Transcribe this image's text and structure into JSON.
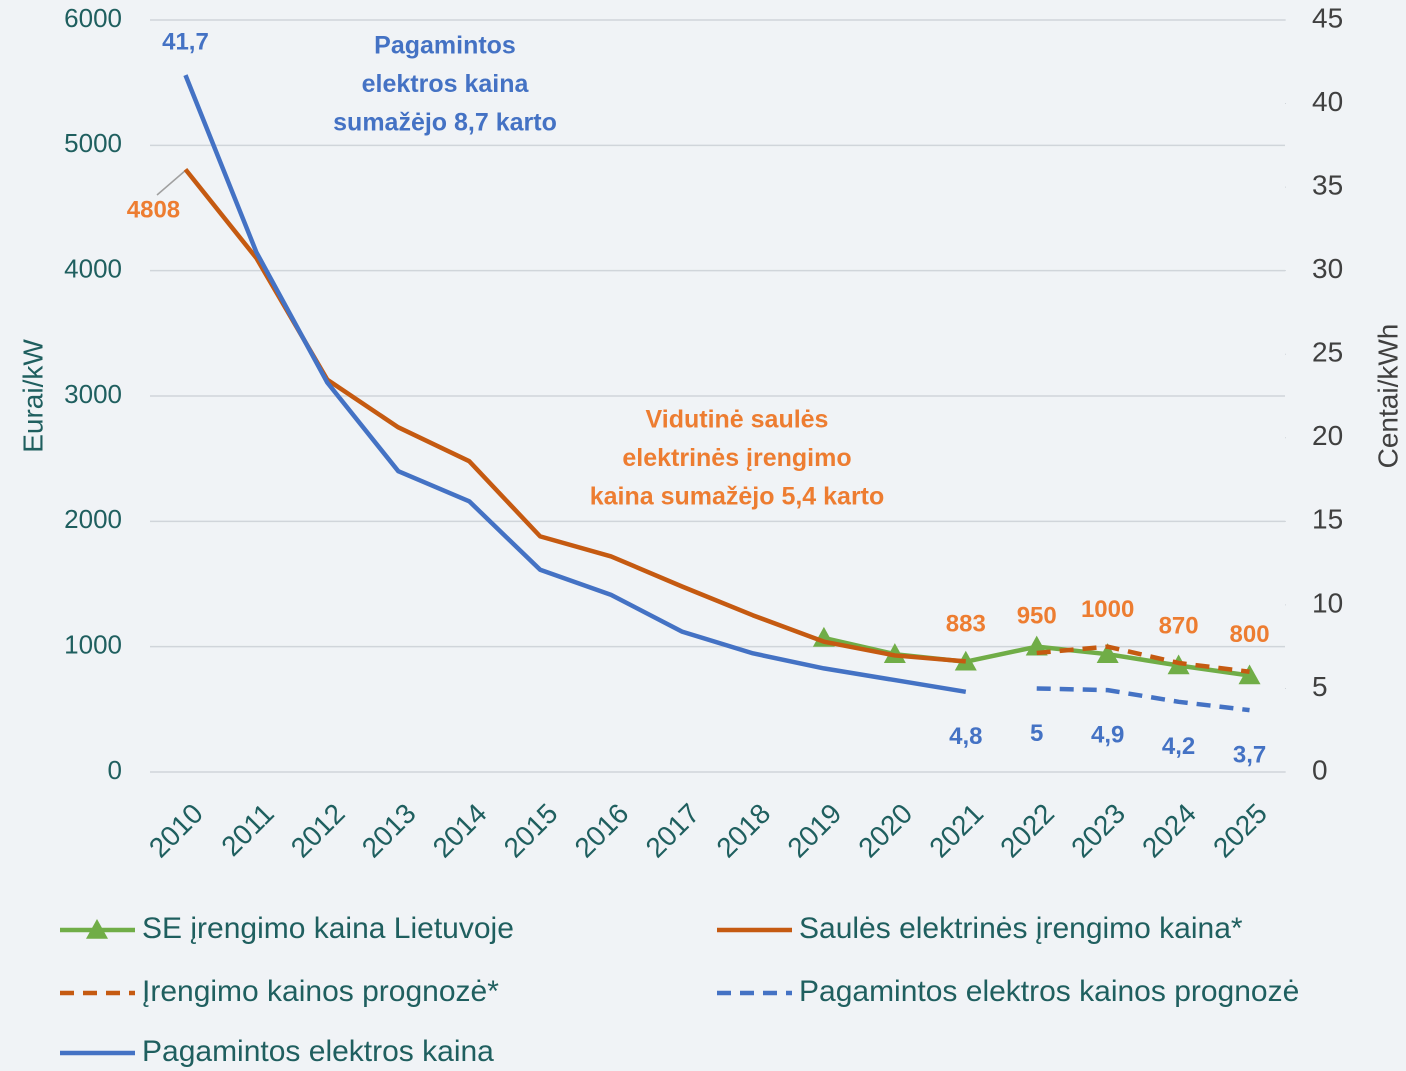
{
  "chart_data": {
    "type": "line",
    "categories": [
      "2010",
      "2011",
      "2012",
      "2013",
      "2014",
      "2015",
      "2016",
      "2017",
      "2018",
      "2019",
      "2020",
      "2021",
      "2022",
      "2023",
      "2024",
      "2025"
    ],
    "ylabel": "Eurai/kW",
    "y2label": "Centai/kWh",
    "ylim": [
      0,
      6000
    ],
    "yticks": [
      0,
      1000,
      2000,
      3000,
      4000,
      5000,
      6000
    ],
    "y2lim": [
      0,
      45
    ],
    "y2ticks": [
      0,
      5,
      10,
      15,
      20,
      25,
      30,
      35,
      40,
      45
    ],
    "grid": true,
    "series": [
      {
        "name": "SE įrengimo kaina Lietuvoje",
        "color": "#70ad47",
        "marker": "triangle",
        "values": [
          null,
          null,
          null,
          null,
          null,
          null,
          null,
          null,
          null,
          1070,
          940,
          880,
          1000,
          940,
          850,
          770
        ]
      },
      {
        "name": "Saulės elektrinės įrengimo kaina*",
        "color": "#c55a11",
        "values": [
          4808,
          4100,
          3130,
          2750,
          2480,
          1880,
          1720,
          1480,
          1250,
          1040,
          930,
          883,
          null,
          null,
          null,
          null
        ],
        "value_labels": [
          "4808",
          null,
          null,
          null,
          null,
          null,
          null,
          null,
          null,
          null,
          null,
          "883",
          null,
          null,
          null,
          null
        ]
      },
      {
        "name": "Įrengimo kainos prognozė*",
        "color": "#c55a11",
        "dashed": true,
        "values": [
          null,
          null,
          null,
          null,
          null,
          null,
          null,
          null,
          null,
          null,
          null,
          null,
          950,
          1000,
          870,
          800
        ],
        "value_labels": [
          null,
          null,
          null,
          null,
          null,
          null,
          null,
          null,
          null,
          null,
          null,
          null,
          "950",
          "1000",
          "870",
          "800"
        ]
      },
      {
        "name": "Pagamintos elektros kainos prognozė",
        "color": "#4472c4",
        "dashed": true,
        "axis": "y2",
        "values": [
          null,
          null,
          null,
          null,
          null,
          null,
          null,
          null,
          null,
          null,
          null,
          null,
          5,
          4.9,
          4.2,
          3.7
        ],
        "value_labels": [
          null,
          null,
          null,
          null,
          null,
          null,
          null,
          null,
          null,
          null,
          null,
          null,
          "5",
          "4,9",
          "4,2",
          "3,7"
        ]
      },
      {
        "name": "Pagamintos elektros kaina",
        "color": "#4472c4",
        "axis": "y2",
        "values": [
          41.7,
          31.1,
          23.3,
          18,
          16.2,
          12.1,
          10.6,
          8.4,
          7.1,
          6.2,
          5.5,
          4.8,
          null,
          null,
          null,
          null
        ],
        "value_labels": [
          "41,7",
          null,
          null,
          null,
          null,
          null,
          null,
          null,
          null,
          null,
          null,
          "4,8",
          null,
          null,
          null,
          null
        ]
      }
    ],
    "annotations": [
      {
        "lines": [
          "Pagamintos",
          "elektros kaina",
          "sumažėjo 8,7 karto"
        ],
        "color": "#4472c4"
      },
      {
        "lines": [
          "Vidutinė saulės",
          "elektrinės įrengimo",
          "kaina sumažėjo 5,4 karto"
        ],
        "color": "#ed7d31"
      }
    ]
  }
}
